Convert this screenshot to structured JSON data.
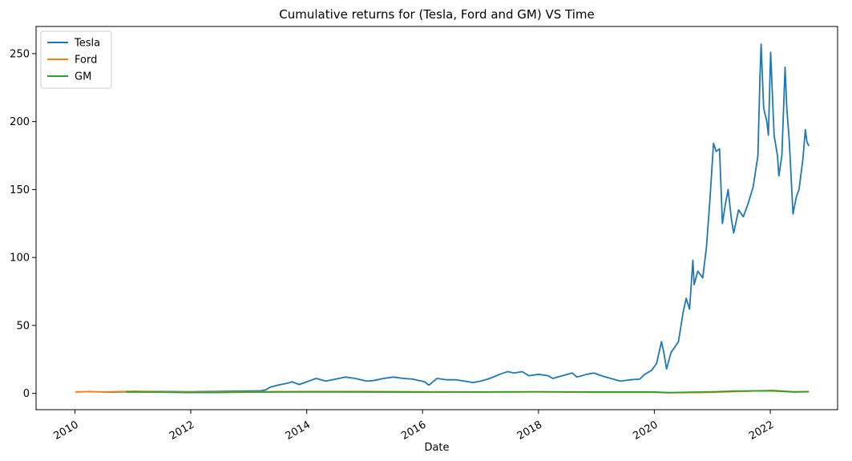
{
  "chart_data": {
    "type": "line",
    "title": "Cumulative returns for (Tesla, Ford and GM) VS Time",
    "xlabel": "Date",
    "ylabel": "",
    "xlim": [
      "2009-05-01",
      "2023-03-01"
    ],
    "ylim": [
      -12,
      270
    ],
    "x_ticks": [
      "2010",
      "2012",
      "2014",
      "2016",
      "2018",
      "2020",
      "2022"
    ],
    "y_ticks": [
      0,
      50,
      100,
      150,
      200,
      250
    ],
    "grid": false,
    "legend_position": "top-left",
    "series": [
      {
        "name": "Tesla",
        "color": "#1f77b4",
        "points": [
          [
            "2010-06-29",
            1.0
          ],
          [
            "2010-09-01",
            0.9
          ],
          [
            "2011-01-01",
            1.3
          ],
          [
            "2011-06-01",
            1.4
          ],
          [
            "2012-01-01",
            1.2
          ],
          [
            "2012-06-01",
            1.4
          ],
          [
            "2013-01-01",
            1.8
          ],
          [
            "2013-03-15",
            1.9
          ],
          [
            "2013-04-15",
            2.5
          ],
          [
            "2013-05-15",
            4.5
          ],
          [
            "2013-07-01",
            6.0
          ],
          [
            "2013-09-01",
            7.5
          ],
          [
            "2013-10-01",
            8.5
          ],
          [
            "2013-11-15",
            6.5
          ],
          [
            "2014-01-01",
            8.5
          ],
          [
            "2014-03-01",
            11.0
          ],
          [
            "2014-05-01",
            9.0
          ],
          [
            "2014-07-01",
            10.5
          ],
          [
            "2014-09-01",
            12.0
          ],
          [
            "2014-11-01",
            11.0
          ],
          [
            "2015-01-15",
            9.0
          ],
          [
            "2015-03-01",
            9.5
          ],
          [
            "2015-05-01",
            11.0
          ],
          [
            "2015-07-01",
            12.0
          ],
          [
            "2015-09-01",
            11.0
          ],
          [
            "2015-11-01",
            10.5
          ],
          [
            "2016-01-15",
            8.5
          ],
          [
            "2016-02-10",
            6.0
          ],
          [
            "2016-04-01",
            11.0
          ],
          [
            "2016-06-01",
            10.0
          ],
          [
            "2016-08-01",
            10.0
          ],
          [
            "2016-11-15",
            8.0
          ],
          [
            "2017-01-01",
            9.0
          ],
          [
            "2017-03-01",
            11.0
          ],
          [
            "2017-05-01",
            14.0
          ],
          [
            "2017-06-20",
            16.0
          ],
          [
            "2017-08-01",
            15.0
          ],
          [
            "2017-09-20",
            16.0
          ],
          [
            "2017-11-01",
            13.0
          ],
          [
            "2018-01-01",
            14.0
          ],
          [
            "2018-03-01",
            13.0
          ],
          [
            "2018-04-01",
            11.0
          ],
          [
            "2018-06-01",
            13.0
          ],
          [
            "2018-08-01",
            15.0
          ],
          [
            "2018-09-01",
            12.0
          ],
          [
            "2018-11-01",
            14.0
          ],
          [
            "2018-12-15",
            15.0
          ],
          [
            "2019-02-01",
            13.0
          ],
          [
            "2019-04-01",
            11.0
          ],
          [
            "2019-06-01",
            9.0
          ],
          [
            "2019-08-01",
            10.0
          ],
          [
            "2019-10-01",
            10.5
          ],
          [
            "2019-11-01",
            14.0
          ],
          [
            "2019-12-15",
            17.0
          ],
          [
            "2020-01-15",
            22.0
          ],
          [
            "2020-02-15",
            38.0
          ],
          [
            "2020-03-01",
            30.0
          ],
          [
            "2020-03-18",
            18.0
          ],
          [
            "2020-04-15",
            30.0
          ],
          [
            "2020-06-01",
            38.0
          ],
          [
            "2020-07-01",
            60.0
          ],
          [
            "2020-07-20",
            70.0
          ],
          [
            "2020-08-10",
            62.0
          ],
          [
            "2020-08-31",
            98.0
          ],
          [
            "2020-09-08",
            80.0
          ],
          [
            "2020-10-01",
            90.0
          ],
          [
            "2020-11-01",
            85.0
          ],
          [
            "2020-11-24",
            107.0
          ],
          [
            "2020-12-15",
            140.0
          ],
          [
            "2021-01-08",
            184.0
          ],
          [
            "2021-01-25",
            178.0
          ],
          [
            "2021-02-15",
            180.0
          ],
          [
            "2021-03-05",
            125.0
          ],
          [
            "2021-03-25",
            140.0
          ],
          [
            "2021-04-10",
            150.0
          ],
          [
            "2021-05-01",
            128.0
          ],
          [
            "2021-05-15",
            118.0
          ],
          [
            "2021-06-15",
            135.0
          ],
          [
            "2021-07-15",
            130.0
          ],
          [
            "2021-08-15",
            140.0
          ],
          [
            "2021-09-15",
            152.0
          ],
          [
            "2021-10-15",
            175.0
          ],
          [
            "2021-10-28",
            234.0
          ],
          [
            "2021-11-04",
            257.0
          ],
          [
            "2021-11-20",
            210.0
          ],
          [
            "2021-12-10",
            200.0
          ],
          [
            "2021-12-20",
            190.0
          ],
          [
            "2022-01-03",
            251.0
          ],
          [
            "2022-01-25",
            190.0
          ],
          [
            "2022-02-15",
            175.0
          ],
          [
            "2022-02-24",
            160.0
          ],
          [
            "2022-03-15",
            175.0
          ],
          [
            "2022-04-04",
            240.0
          ],
          [
            "2022-04-15",
            210.0
          ],
          [
            "2022-05-01",
            185.0
          ],
          [
            "2022-05-24",
            132.0
          ],
          [
            "2022-06-15",
            145.0
          ],
          [
            "2022-07-01",
            150.0
          ],
          [
            "2022-07-25",
            172.0
          ],
          [
            "2022-08-10",
            194.0
          ],
          [
            "2022-08-20",
            185.0
          ],
          [
            "2022-09-01",
            182.0
          ]
        ]
      },
      {
        "name": "Ford",
        "color": "#ff7f0e",
        "points": [
          [
            "2010-01-04",
            1.0
          ],
          [
            "2010-04-01",
            1.3
          ],
          [
            "2010-07-01",
            1.0
          ],
          [
            "2011-01-10",
            1.6
          ],
          [
            "2011-04-01",
            1.4
          ],
          [
            "2011-10-01",
            0.9
          ],
          [
            "2012-06-01",
            0.9
          ],
          [
            "2013-01-01",
            1.2
          ],
          [
            "2014-01-01",
            1.4
          ],
          [
            "2015-01-01",
            1.4
          ],
          [
            "2016-01-01",
            1.2
          ],
          [
            "2017-01-01",
            1.1
          ],
          [
            "2018-01-01",
            1.1
          ],
          [
            "2019-01-01",
            0.8
          ],
          [
            "2020-01-01",
            0.8
          ],
          [
            "2020-04-01",
            0.4
          ],
          [
            "2021-01-01",
            0.8
          ],
          [
            "2021-06-01",
            1.4
          ],
          [
            "2022-01-14",
            2.2
          ],
          [
            "2022-06-01",
            1.2
          ],
          [
            "2022-09-01",
            1.4
          ]
        ]
      },
      {
        "name": "GM",
        "color": "#2ca02c",
        "points": [
          [
            "2010-11-18",
            1.0
          ],
          [
            "2011-06-01",
            0.9
          ],
          [
            "2011-12-01",
            0.6
          ],
          [
            "2012-06-01",
            0.6
          ],
          [
            "2013-01-01",
            0.9
          ],
          [
            "2014-01-01",
            1.1
          ],
          [
            "2015-01-01",
            1.0
          ],
          [
            "2016-01-01",
            0.9
          ],
          [
            "2017-01-01",
            1.0
          ],
          [
            "2018-01-01",
            1.2
          ],
          [
            "2019-01-01",
            1.0
          ],
          [
            "2020-01-01",
            1.0
          ],
          [
            "2020-04-01",
            0.6
          ],
          [
            "2021-01-01",
            1.2
          ],
          [
            "2021-06-01",
            1.7
          ],
          [
            "2022-01-05",
            1.9
          ],
          [
            "2022-06-01",
            1.0
          ],
          [
            "2022-09-01",
            1.2
          ]
        ]
      }
    ]
  }
}
